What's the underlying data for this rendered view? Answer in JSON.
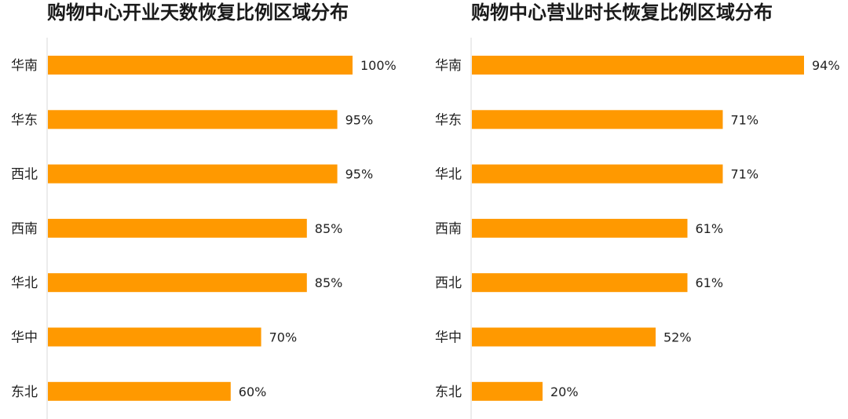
{
  "colors": {
    "bar": "#FF9900",
    "axis": "#d9d9d9",
    "text": "#222222"
  },
  "chart_data": [
    {
      "type": "bar",
      "orientation": "horizontal",
      "title": "购物中心开业天数恢复比例区域分布",
      "categories": [
        "华南",
        "华东",
        "西北",
        "西南",
        "华北",
        "华中",
        "东北"
      ],
      "values": [
        100,
        95,
        95,
        85,
        85,
        70,
        60
      ],
      "value_labels": [
        "100%",
        "95%",
        "95%",
        "85%",
        "85%",
        "70%",
        "60%"
      ],
      "unit": "%",
      "xlim": [
        0,
        100
      ],
      "grid": false,
      "legend": "none"
    },
    {
      "type": "bar",
      "orientation": "horizontal",
      "title": "购物中心营业时长恢复比例区域分布",
      "categories": [
        "华南",
        "华东",
        "华北",
        "西南",
        "西北",
        "华中",
        "东北"
      ],
      "values": [
        94,
        71,
        71,
        61,
        61,
        52,
        20
      ],
      "value_labels": [
        "94%",
        "71%",
        "71%",
        "61%",
        "61%",
        "52%",
        "20%"
      ],
      "unit": "%",
      "xlim": [
        0,
        100
      ],
      "grid": false,
      "legend": "none"
    }
  ]
}
